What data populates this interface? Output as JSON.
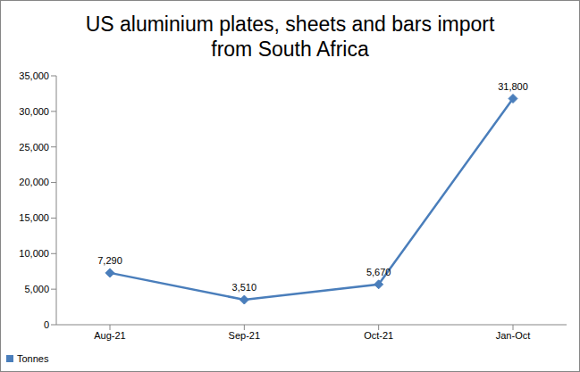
{
  "chart_data": {
    "type": "line",
    "title": "US aluminium plates, sheets and bars import\nfrom South Africa",
    "categories": [
      "Aug-21",
      "Sep-21",
      "Oct-21",
      "Jan-Oct"
    ],
    "series": [
      {
        "name": "Tonnes",
        "color": "#4a7ebb",
        "marker": "diamond",
        "values": [
          7290,
          3510,
          5670,
          31800
        ],
        "value_labels": [
          "7,290",
          "3,510",
          "5,670",
          "31,800"
        ]
      }
    ],
    "ylim": [
      0,
      35000
    ],
    "yticks": [
      0,
      {
        "value": 5000,
        "label": "5,000"
      },
      {
        "value": 10000,
        "label": "10,000"
      },
      {
        "value": 15000,
        "label": "15,000"
      },
      {
        "value": 20000,
        "label": "20,000"
      },
      {
        "value": 25000,
        "label": "25,000"
      },
      {
        "value": 30000,
        "label": "30,000"
      },
      {
        "value": 35000,
        "label": "35,000"
      }
    ],
    "grid": false,
    "legend": "bottom-left",
    "data_labels": true
  }
}
